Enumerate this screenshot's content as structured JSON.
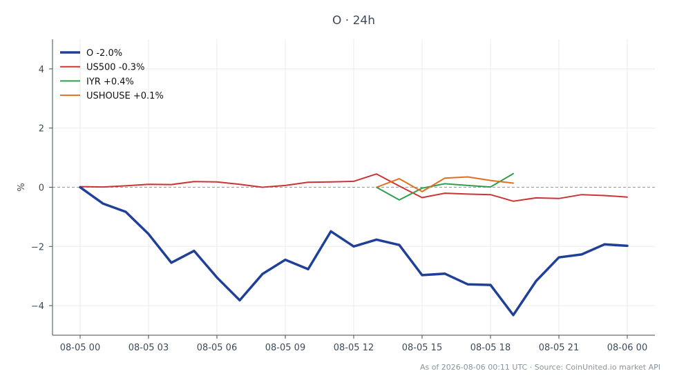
{
  "chart_data": {
    "type": "line",
    "title": "O · 24h",
    "xlabel": "",
    "ylabel": "%",
    "ylim": [
      -5,
      5
    ],
    "yticks": [
      -4,
      -2,
      0,
      2,
      4
    ],
    "ytick_labels": [
      "−4",
      "−2",
      "0",
      "2",
      "4"
    ],
    "x_tick_labels": [
      "08-05 00",
      "08-05 03",
      "08-05 06",
      "08-05 09",
      "08-05 12",
      "08-05 15",
      "08-05 18",
      "08-05 21",
      "08-06 00"
    ],
    "grid": true,
    "legend_position": "top-left",
    "reference_line": 0,
    "x_hours": [
      0,
      1,
      2,
      3,
      4,
      5,
      6,
      7,
      8,
      9,
      10,
      11,
      12,
      13,
      14,
      15,
      16,
      17,
      18,
      19,
      20,
      21,
      22,
      23,
      24
    ],
    "series": [
      {
        "name": "O -2.0%",
        "color": "#1f3f99",
        "width": 3.5,
        "start_hour": 0,
        "values": [
          0.0,
          -0.55,
          -0.83,
          -1.58,
          -2.55,
          -2.15,
          -3.05,
          -3.82,
          -2.93,
          -2.45,
          -2.77,
          -1.49,
          -2.0,
          -1.77,
          -1.95,
          -2.97,
          -2.92,
          -3.28,
          -3.3,
          -4.32,
          -3.17,
          -2.37,
          -2.27,
          -1.93,
          -1.98
        ]
      },
      {
        "name": "US500 -0.3%",
        "color": "#cc3333",
        "width": 2,
        "start_hour": 0,
        "values": [
          0.02,
          0.01,
          0.05,
          0.1,
          0.09,
          0.19,
          0.18,
          0.1,
          0.0,
          0.06,
          0.17,
          0.18,
          0.2,
          0.45,
          0.04,
          -0.35,
          -0.2,
          -0.23,
          -0.25,
          -0.47,
          -0.36,
          -0.38,
          -0.25,
          -0.28,
          -0.33
        ]
      },
      {
        "name": "IYR +0.4%",
        "color": "#2e9e4f",
        "width": 2,
        "start_hour": 13,
        "values": [
          0.0,
          -0.43,
          -0.03,
          0.12,
          0.06,
          0.01,
          0.46
        ]
      },
      {
        "name": "USHOUSE +0.1%",
        "color": "#e07020",
        "width": 2,
        "start_hour": 13,
        "values": [
          0.0,
          0.29,
          -0.15,
          0.31,
          0.35,
          0.23,
          0.14
        ]
      }
    ]
  },
  "footer": "As of 2026-08-06 00:11 UTC · Source: CoinUnited.io market API"
}
